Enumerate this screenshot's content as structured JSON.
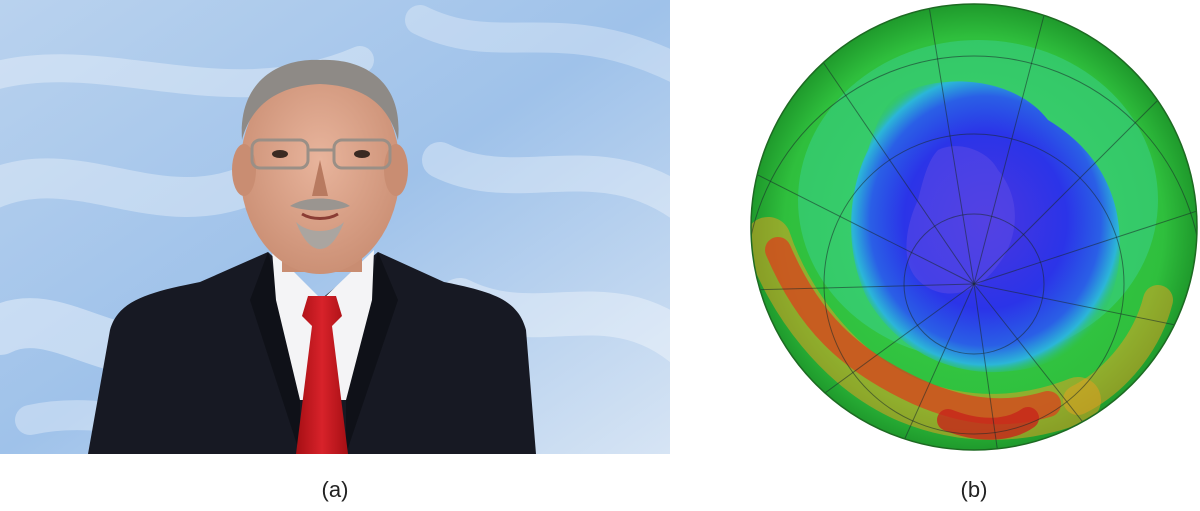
{
  "figure": {
    "panel_a": {
      "caption": "(a)",
      "subject": "man-in-suit-portrait-photo"
    },
    "panel_b": {
      "caption": "(b)",
      "subject": "ozone-hole-globe-map"
    }
  },
  "colors": {
    "sky_light": "#dce8f5",
    "sky_blue": "#8fb6e3",
    "suit": "#15171f",
    "tie": "#c4161c",
    "ozone_low": "#2233dd",
    "ozone_mid": "#2ec84a",
    "ozone_high": "#d0301a"
  }
}
